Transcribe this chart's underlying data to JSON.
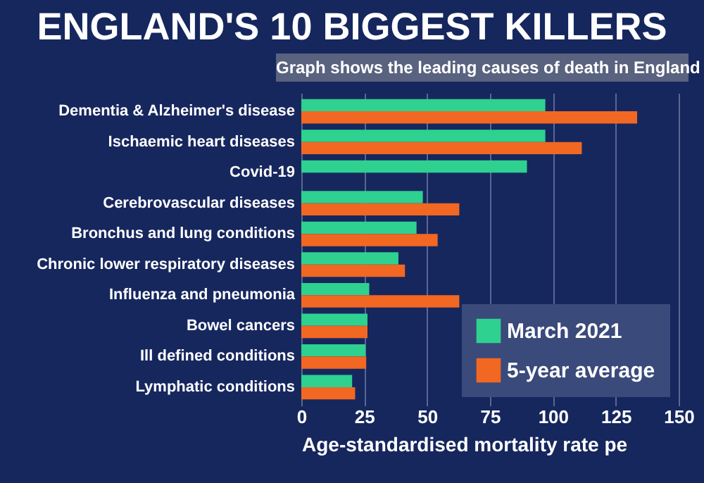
{
  "chart_data": {
    "type": "bar",
    "orientation": "horizontal",
    "title": "ENGLAND'S 10 BIGGEST KILLERS",
    "subtitle": "Graph shows the leading causes of death in England",
    "xlabel": "Age-standardised mortality rate pe",
    "categories": [
      "Dementia & Alzheimer's disease",
      "Ischaemic heart diseases",
      "Covid-19",
      "Cerebrovascular diseases",
      "Bronchus and lung conditions",
      "Chronic lower respiratory diseases",
      "Influenza and pneumonia",
      "Bowel cancers",
      "Ill defined conditions",
      "Lymphatic conditions"
    ],
    "series": [
      {
        "name": "March 2021",
        "color": "#2ed18f",
        "values": [
          97,
          97,
          89.7,
          48.3,
          45.8,
          38.6,
          27,
          26.3,
          25.5,
          20.2
        ]
      },
      {
        "name": "5-year average",
        "color": "#f26722",
        "values": [
          133.5,
          111.5,
          null,
          62.8,
          54.2,
          41.2,
          62.8,
          26.3,
          25.8,
          21.4
        ]
      }
    ],
    "xlim": [
      0,
      150
    ],
    "xticks": [
      0,
      25,
      50,
      75,
      100,
      125,
      150
    ],
    "grid": "x",
    "legend": "bottom right"
  }
}
